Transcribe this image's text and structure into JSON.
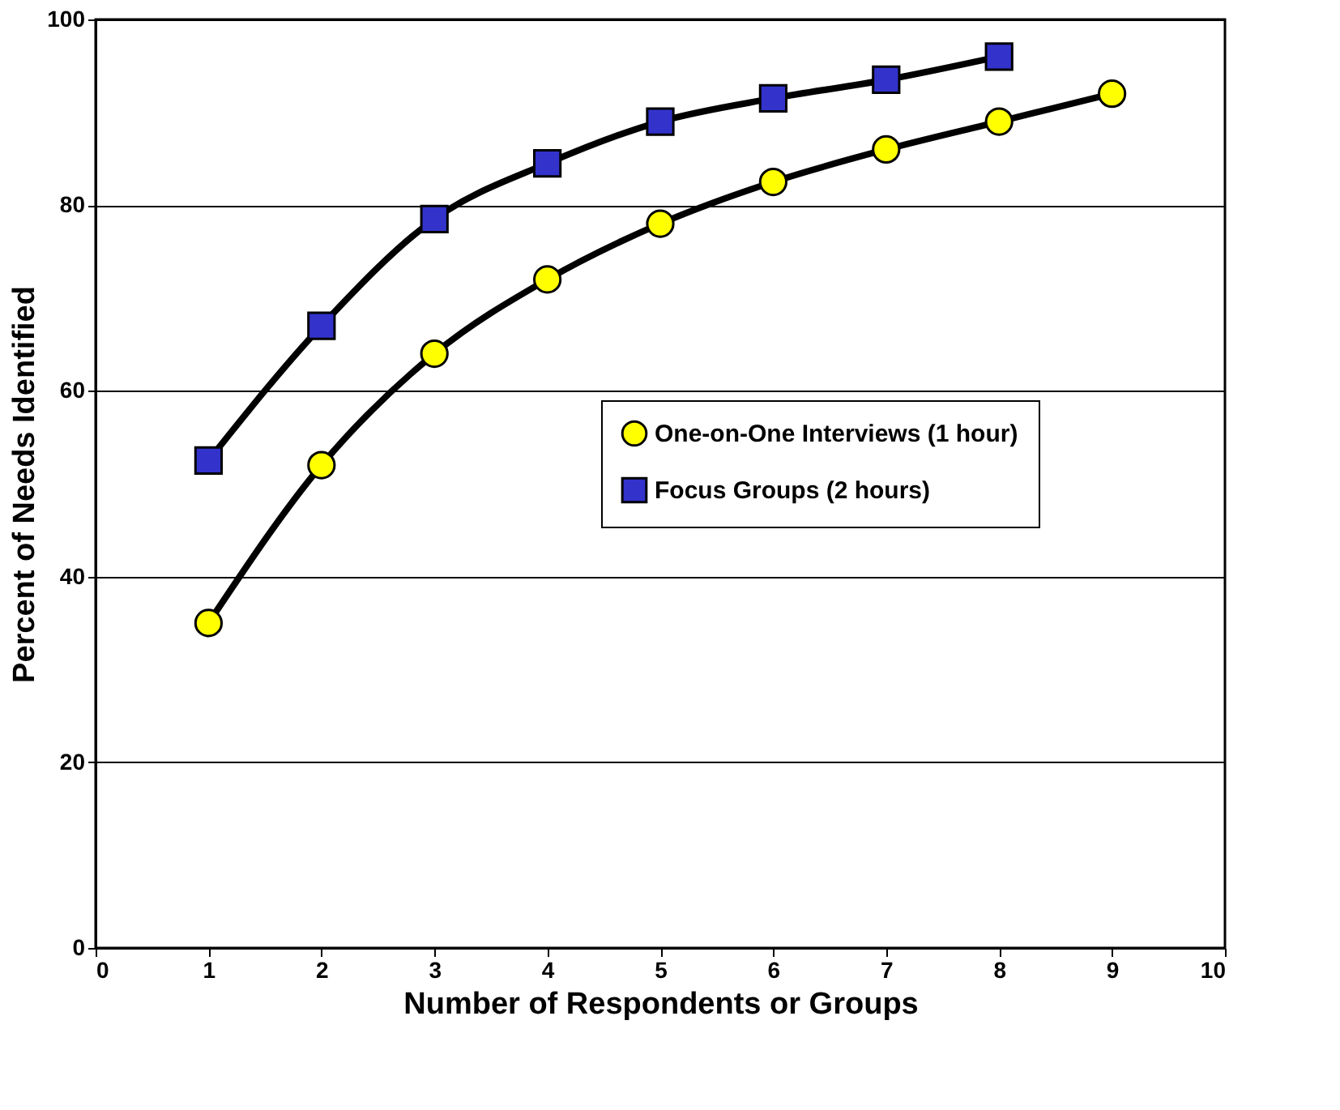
{
  "chart_data": {
    "type": "line",
    "xlabel": "Number of Respondents or Groups",
    "ylabel": "Percent of Needs Identified",
    "x": [
      1,
      2,
      3,
      4,
      5,
      6,
      7,
      8,
      9
    ],
    "series": [
      {
        "name": "One-on-One Interviews (1 hour)",
        "color": "#ffff00",
        "marker": "circle",
        "values": [
          35,
          52,
          64,
          72,
          78,
          82.5,
          86,
          89,
          92
        ]
      },
      {
        "name": "Focus Groups (2 hours)",
        "color": "#3333cc",
        "marker": "square",
        "x": [
          1,
          2,
          3,
          4,
          5,
          6,
          7,
          8
        ],
        "values": [
          52.5,
          67,
          78.5,
          84.5,
          89,
          91.5,
          93.5,
          96
        ]
      }
    ],
    "xlim": [
      0,
      10
    ],
    "xticks": [
      0,
      1,
      2,
      3,
      4,
      5,
      6,
      7,
      8,
      9,
      10
    ],
    "ylim": [
      0,
      100
    ],
    "yticks": [
      0,
      20,
      40,
      60,
      80,
      100
    ],
    "grid": "y",
    "legend": "right",
    "line_style": "solid"
  }
}
